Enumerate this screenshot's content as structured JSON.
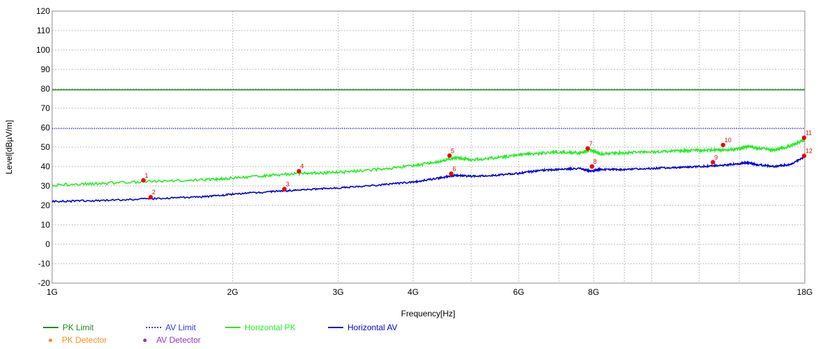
{
  "chart_data": {
    "type": "line",
    "xlabel": "Frequency[Hz]",
    "ylabel": "Level[dBµV/m]",
    "x_scale": "log",
    "xlim": [
      1000000000,
      18000000000
    ],
    "ylim": [
      -20,
      120
    ],
    "grid": true,
    "legend_position": "bottom-left",
    "x_ticks": [
      {
        "value": 1000000000,
        "label": "1G"
      },
      {
        "value": 2000000000,
        "label": "2G"
      },
      {
        "value": 3000000000,
        "label": "3G"
      },
      {
        "value": 4000000000,
        "label": "4G"
      },
      {
        "value": 6000000000,
        "label": "6G"
      },
      {
        "value": 8000000000,
        "label": "8G"
      },
      {
        "value": 18000000000,
        "label": "18G"
      }
    ],
    "x_minor_grid": [
      5000000000,
      7000000000,
      9000000000,
      10000000000,
      12000000000,
      14000000000
    ],
    "y_ticks": [
      -20,
      -10,
      0,
      10,
      20,
      30,
      40,
      50,
      60,
      70,
      80,
      90,
      100,
      110,
      120
    ],
    "series": [
      {
        "name": "PK Limit",
        "color": "#1f8a1f",
        "style": "solid",
        "x": [
          1000000000,
          18000000000
        ],
        "y": [
          79.5,
          79.5
        ]
      },
      {
        "name": "AV Limit",
        "color": "#3333ff",
        "style": "dotted",
        "x": [
          1000000000,
          18000000000
        ],
        "y": [
          59.5,
          59.5
        ]
      },
      {
        "name": "Horizontal PK",
        "color": "#22ee22",
        "style": "solid",
        "x": [
          1000000000,
          1200000000,
          1500000000,
          1800000000,
          2000000000,
          2300000000,
          2600000000,
          3000000000,
          3500000000,
          4000000000,
          4400000000,
          4700000000,
          5000000000,
          5500000000,
          6000000000,
          6500000000,
          7000000000,
          7600000000,
          7900000000,
          8200000000,
          9000000000,
          10000000000,
          11000000000,
          12000000000,
          13000000000,
          14000000000,
          14500000000,
          15000000000,
          16000000000,
          17000000000,
          18000000000
        ],
        "y": [
          30.5,
          31.2,
          32.5,
          33.2,
          34.0,
          35.5,
          36.5,
          37.0,
          38.5,
          40.5,
          42.5,
          44.5,
          43.5,
          44.5,
          46.0,
          46.8,
          47.5,
          47.0,
          48.5,
          46.5,
          47.0,
          47.5,
          48.0,
          48.3,
          48.5,
          49.0,
          50.5,
          49.5,
          48.5,
          50.5,
          54.0
        ]
      },
      {
        "name": "Horizontal AV",
        "color": "#0000dd",
        "style": "solid",
        "x": [
          1000000000,
          1200000000,
          1500000000,
          1800000000,
          2000000000,
          2300000000,
          2600000000,
          3000000000,
          3500000000,
          4000000000,
          4400000000,
          4700000000,
          5000000000,
          5500000000,
          6000000000,
          6500000000,
          7000000000,
          7600000000,
          7900000000,
          8200000000,
          9000000000,
          10000000000,
          11000000000,
          12000000000,
          13000000000,
          14000000000,
          14500000000,
          15000000000,
          16000000000,
          17000000000,
          18000000000
        ],
        "y": [
          22.0,
          22.5,
          23.5,
          24.5,
          25.8,
          27.0,
          28.0,
          29.0,
          30.5,
          32.0,
          34.0,
          35.5,
          35.0,
          35.5,
          36.5,
          38.0,
          38.5,
          39.0,
          37.5,
          38.5,
          38.5,
          39.0,
          39.5,
          40.0,
          40.5,
          41.5,
          42.0,
          41.0,
          40.0,
          41.0,
          45.0
        ]
      }
    ],
    "markers": [
      {
        "label": "1",
        "detector": "PK Detector",
        "x": 1420000000,
        "y": 32.9
      },
      {
        "label": "2",
        "detector": "AV Detector",
        "x": 1460000000,
        "y": 24.2
      },
      {
        "label": "3",
        "detector": "AV Detector",
        "x": 2440000000,
        "y": 28.4
      },
      {
        "label": "4",
        "detector": "PK Detector",
        "x": 2580000000,
        "y": 37.6
      },
      {
        "label": "5",
        "detector": "PK Detector",
        "x": 4600000000,
        "y": 45.6
      },
      {
        "label": "6",
        "detector": "AV Detector",
        "x": 4630000000,
        "y": 36.3
      },
      {
        "label": "7",
        "detector": "PK Detector",
        "x": 7820000000,
        "y": 49.3
      },
      {
        "label": "8",
        "detector": "AV Detector",
        "x": 7950000000,
        "y": 40.0
      },
      {
        "label": "9",
        "detector": "AV Detector",
        "x": 12650000000,
        "y": 42.2
      },
      {
        "label": "10",
        "detector": "PK Detector",
        "x": 13150000000,
        "y": 51.1
      },
      {
        "label": "11",
        "detector": "PK Detector",
        "x": 17950000000,
        "y": 54.8
      },
      {
        "label": "12",
        "detector": "AV Detector",
        "x": 17950000000,
        "y": 45.5
      }
    ],
    "legend": [
      {
        "name": "PK Limit",
        "kind": "line",
        "color": "#1f8a1f",
        "style": "solid"
      },
      {
        "name": "AV Limit",
        "kind": "line",
        "color": "#3333ff",
        "style": "dotted"
      },
      {
        "name": "Horizontal PK",
        "kind": "line",
        "color": "#22ee22",
        "style": "solid"
      },
      {
        "name": "Horizontal AV",
        "kind": "line",
        "color": "#0000dd",
        "style": "solid"
      },
      {
        "name": "PK Detector",
        "kind": "dot",
        "color": "#ff8c1a"
      },
      {
        "name": "AV Detector",
        "kind": "dot",
        "color": "#9b30c8"
      }
    ],
    "marker_color": "#ee0000"
  }
}
